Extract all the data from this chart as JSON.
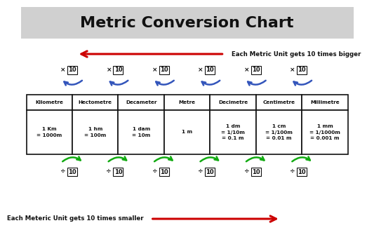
{
  "title": "Metric Conversion Chart",
  "title_fontsize": 16,
  "background_color": "#ffffff",
  "header_bg": "#d0d0d0",
  "units": [
    "Kilometre",
    "Hectometre",
    "Decameter",
    "Metre",
    "Decimetre",
    "Centimetre",
    "Millimetre"
  ],
  "values": [
    "1 Km\n= 1000m",
    "1 hm\n= 100m",
    "1 dam\n= 10m",
    "1 m",
    "1 dm\n= 1/10m\n= 0.1 m",
    "1 cm\n= 1/100m\n= 0.01 m",
    "1 mm\n= 1/1000m\n= 0.001 m"
  ],
  "bigger_text": "Each Metric Unit gets 10 times bigger",
  "smaller_text": "Each Meteric Unit gets 10 times smaller",
  "multiply_label": "×",
  "divide_label": "÷",
  "factor": "10",
  "arrow_color_red": "#cc0000",
  "arrow_color_blue": "#3355bb",
  "arrow_color_green": "#11aa11",
  "box_color": "#ffffff",
  "border_color": "#111111",
  "text_color": "#111111"
}
